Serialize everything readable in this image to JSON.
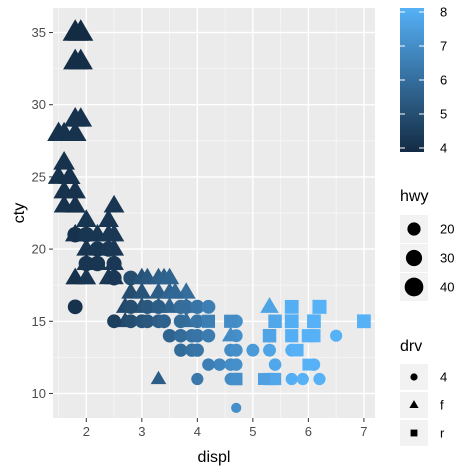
{
  "chart_data": {
    "type": "scatter",
    "title": "",
    "xlabel": "displ",
    "ylabel": "cty",
    "xlim": [
      1.4,
      7.2
    ],
    "ylim": [
      8.3,
      36.7
    ],
    "x_ticks": [
      2,
      3,
      4,
      5,
      6,
      7
    ],
    "y_ticks": [
      10,
      15,
      20,
      25,
      30,
      35
    ],
    "grid": true,
    "color_encoding": {
      "variable": "hwy",
      "legend_range": [
        4,
        8
      ],
      "ticks": [
        4,
        5,
        6,
        7,
        8
      ],
      "low_color": "#132B43",
      "high_color": "#56B1F7"
    },
    "size_encoding": {
      "variable": "hwy",
      "legend_title": "hwy",
      "legend_values": [
        20,
        30,
        40
      ]
    },
    "shape_encoding": {
      "variable": "drv",
      "legend_title": "drv",
      "levels": [
        {
          "label": "4",
          "shape": "circle"
        },
        {
          "label": "f",
          "shape": "triangle"
        },
        {
          "label": "r",
          "shape": "square"
        }
      ]
    },
    "legend_placement": "right",
    "points": [
      {
        "x": 1.8,
        "y": 35,
        "drv": "f",
        "hwy": 44,
        "c": 4.0
      },
      {
        "x": 1.9,
        "y": 35,
        "drv": "f",
        "hwy": 44,
        "c": 4.0
      },
      {
        "x": 1.8,
        "y": 33,
        "drv": "f",
        "hwy": 41,
        "c": 4.1
      },
      {
        "x": 1.9,
        "y": 33,
        "drv": "f",
        "hwy": 41,
        "c": 4.1
      },
      {
        "x": 1.8,
        "y": 29,
        "drv": "f",
        "hwy": 37,
        "c": 4.2
      },
      {
        "x": 1.9,
        "y": 29,
        "drv": "f",
        "hwy": 36,
        "c": 4.2
      },
      {
        "x": 1.5,
        "y": 28,
        "drv": "f",
        "hwy": 36,
        "c": 4.2
      },
      {
        "x": 1.6,
        "y": 28,
        "drv": "f",
        "hwy": 35,
        "c": 4.2
      },
      {
        "x": 1.8,
        "y": 28,
        "drv": "f",
        "hwy": 36,
        "c": 4.2
      },
      {
        "x": 1.6,
        "y": 26,
        "drv": "f",
        "hwy": 33,
        "c": 4.2
      },
      {
        "x": 1.5,
        "y": 25,
        "drv": "f",
        "hwy": 32,
        "c": 4.2
      },
      {
        "x": 1.7,
        "y": 25,
        "drv": "f",
        "hwy": 33,
        "c": 4.2
      },
      {
        "x": 1.6,
        "y": 24,
        "drv": "f",
        "hwy": 32,
        "c": 4.2
      },
      {
        "x": 1.8,
        "y": 24,
        "drv": "f",
        "hwy": 32,
        "c": 4.2
      },
      {
        "x": 1.8,
        "y": 23,
        "drv": "f",
        "hwy": 31,
        "c": 4.2
      },
      {
        "x": 1.6,
        "y": 23,
        "drv": "f",
        "hwy": 30,
        "c": 4.2
      },
      {
        "x": 2.0,
        "y": 22,
        "drv": "f",
        "hwy": 30,
        "c": 4.3
      },
      {
        "x": 2.4,
        "y": 22,
        "drv": "f",
        "hwy": 30,
        "c": 4.3
      },
      {
        "x": 2.5,
        "y": 23,
        "drv": "f",
        "hwy": 30,
        "c": 4.3
      },
      {
        "x": 1.8,
        "y": 21,
        "drv": "f",
        "hwy": 29,
        "c": 4.2
      },
      {
        "x": 2.0,
        "y": 21,
        "drv": "f",
        "hwy": 29,
        "c": 4.3
      },
      {
        "x": 2.2,
        "y": 21,
        "drv": "f",
        "hwy": 29,
        "c": 4.3
      },
      {
        "x": 2.4,
        "y": 21,
        "drv": "f",
        "hwy": 29,
        "c": 4.4
      },
      {
        "x": 2.5,
        "y": 21,
        "drv": "f",
        "hwy": 29,
        "c": 4.4
      },
      {
        "x": 2.0,
        "y": 20,
        "drv": "f",
        "hwy": 28,
        "c": 4.3
      },
      {
        "x": 2.4,
        "y": 20,
        "drv": "f",
        "hwy": 28,
        "c": 4.4
      },
      {
        "x": 2.5,
        "y": 20,
        "drv": "f",
        "hwy": 28,
        "c": 4.4
      },
      {
        "x": 2.2,
        "y": 19,
        "drv": "f",
        "hwy": 27,
        "c": 4.3
      },
      {
        "x": 2.5,
        "y": 19,
        "drv": "f",
        "hwy": 27,
        "c": 4.4
      },
      {
        "x": 2.0,
        "y": 19,
        "drv": "f",
        "hwy": 27,
        "c": 4.3
      },
      {
        "x": 1.8,
        "y": 18,
        "drv": "f",
        "hwy": 27,
        "c": 4.2
      },
      {
        "x": 2.0,
        "y": 18,
        "drv": "f",
        "hwy": 27,
        "c": 4.3
      },
      {
        "x": 2.5,
        "y": 18,
        "drv": "f",
        "hwy": 26,
        "c": 4.4
      },
      {
        "x": 2.4,
        "y": 18,
        "drv": "f",
        "hwy": 26,
        "c": 4.4
      },
      {
        "x": 1.8,
        "y": 21,
        "drv": "4",
        "hwy": 28,
        "c": 4.2
      },
      {
        "x": 2.0,
        "y": 21,
        "drv": "4",
        "hwy": 28,
        "c": 4.3
      },
      {
        "x": 2.2,
        "y": 20,
        "drv": "4",
        "hwy": 27,
        "c": 4.3
      },
      {
        "x": 2.4,
        "y": 20,
        "drv": "4",
        "hwy": 27,
        "c": 4.4
      },
      {
        "x": 2.0,
        "y": 19,
        "drv": "4",
        "hwy": 27,
        "c": 4.3
      },
      {
        "x": 2.2,
        "y": 19,
        "drv": "4",
        "hwy": 27,
        "c": 4.3
      },
      {
        "x": 2.5,
        "y": 19,
        "drv": "4",
        "hwy": 26,
        "c": 4.4
      },
      {
        "x": 1.8,
        "y": 16,
        "drv": "4",
        "hwy": 25,
        "c": 4.2
      },
      {
        "x": 2.5,
        "y": 18,
        "drv": "4",
        "hwy": 26,
        "c": 4.4
      },
      {
        "x": 2.8,
        "y": 18,
        "drv": "4",
        "hwy": 25,
        "c": 5.0
      },
      {
        "x": 3.0,
        "y": 18,
        "drv": "f",
        "hwy": 26,
        "c": 5.2
      },
      {
        "x": 3.1,
        "y": 18,
        "drv": "f",
        "hwy": 26,
        "c": 5.3
      },
      {
        "x": 3.3,
        "y": 18,
        "drv": "f",
        "hwy": 26,
        "c": 5.5
      },
      {
        "x": 3.4,
        "y": 18,
        "drv": "f",
        "hwy": 26,
        "c": 5.6
      },
      {
        "x": 3.5,
        "y": 18,
        "drv": "f",
        "hwy": 26,
        "c": 5.7
      },
      {
        "x": 2.8,
        "y": 17,
        "drv": "f",
        "hwy": 25,
        "c": 5.0
      },
      {
        "x": 3.0,
        "y": 17,
        "drv": "f",
        "hwy": 25,
        "c": 5.2
      },
      {
        "x": 3.3,
        "y": 17,
        "drv": "f",
        "hwy": 25,
        "c": 5.5
      },
      {
        "x": 3.5,
        "y": 17,
        "drv": "f",
        "hwy": 25,
        "c": 5.7
      },
      {
        "x": 3.8,
        "y": 17,
        "drv": "f",
        "hwy": 25,
        "c": 6.0
      },
      {
        "x": 3.6,
        "y": 17,
        "drv": "f",
        "hwy": 25,
        "c": 5.8
      },
      {
        "x": 2.7,
        "y": 16,
        "drv": "f",
        "hwy": 24,
        "c": 4.9
      },
      {
        "x": 3.3,
        "y": 16,
        "drv": "f",
        "hwy": 24,
        "c": 5.5
      },
      {
        "x": 3.8,
        "y": 16,
        "drv": "f",
        "hwy": 24,
        "c": 6.0
      },
      {
        "x": 3.5,
        "y": 16,
        "drv": "f",
        "hwy": 24,
        "c": 5.7
      },
      {
        "x": 3.0,
        "y": 16,
        "drv": "f",
        "hwy": 24,
        "c": 5.2
      },
      {
        "x": 2.8,
        "y": 16,
        "drv": "4",
        "hwy": 23,
        "c": 5.0
      },
      {
        "x": 3.1,
        "y": 16,
        "drv": "4",
        "hwy": 23,
        "c": 5.3
      },
      {
        "x": 3.3,
        "y": 16,
        "drv": "4",
        "hwy": 23,
        "c": 5.5
      },
      {
        "x": 3.7,
        "y": 16,
        "drv": "4",
        "hwy": 23,
        "c": 5.9
      },
      {
        "x": 3.8,
        "y": 16,
        "drv": "4",
        "hwy": 23,
        "c": 6.0
      },
      {
        "x": 4.0,
        "y": 16,
        "drv": "4",
        "hwy": 23,
        "c": 6.2
      },
      {
        "x": 2.7,
        "y": 15,
        "drv": "f",
        "hwy": 22,
        "c": 4.9
      },
      {
        "x": 3.8,
        "y": 15,
        "drv": "f",
        "hwy": 22,
        "c": 6.0
      },
      {
        "x": 2.8,
        "y": 15,
        "drv": "4",
        "hwy": 22,
        "c": 5.0
      },
      {
        "x": 3.0,
        "y": 15,
        "drv": "4",
        "hwy": 22,
        "c": 5.2
      },
      {
        "x": 3.1,
        "y": 15,
        "drv": "4",
        "hwy": 22,
        "c": 5.3
      },
      {
        "x": 3.3,
        "y": 15,
        "drv": "4",
        "hwy": 22,
        "c": 5.5
      },
      {
        "x": 3.4,
        "y": 15,
        "drv": "4",
        "hwy": 22,
        "c": 5.6
      },
      {
        "x": 3.7,
        "y": 15,
        "drv": "4",
        "hwy": 22,
        "c": 5.9
      },
      {
        "x": 4.0,
        "y": 15,
        "drv": "4",
        "hwy": 22,
        "c": 6.2
      },
      {
        "x": 2.5,
        "y": 15,
        "drv": "4",
        "hwy": 22,
        "c": 4.6
      },
      {
        "x": 3.5,
        "y": 14,
        "drv": "4",
        "hwy": 21,
        "c": 5.7
      },
      {
        "x": 3.7,
        "y": 14,
        "drv": "4",
        "hwy": 21,
        "c": 5.9
      },
      {
        "x": 3.9,
        "y": 14,
        "drv": "4",
        "hwy": 21,
        "c": 6.1
      },
      {
        "x": 4.0,
        "y": 14,
        "drv": "4",
        "hwy": 21,
        "c": 6.2
      },
      {
        "x": 4.2,
        "y": 14,
        "drv": "4",
        "hwy": 21,
        "c": 6.4
      },
      {
        "x": 3.7,
        "y": 13,
        "drv": "4",
        "hwy": 20,
        "c": 5.9
      },
      {
        "x": 3.9,
        "y": 13,
        "drv": "4",
        "hwy": 20,
        "c": 6.1
      },
      {
        "x": 4.0,
        "y": 13,
        "drv": "4",
        "hwy": 20,
        "c": 6.2
      },
      {
        "x": 4.7,
        "y": 15,
        "drv": "4",
        "hwy": 20,
        "c": 7.0
      },
      {
        "x": 4.7,
        "y": 14,
        "drv": "4",
        "hwy": 19,
        "c": 7.0
      },
      {
        "x": 4.6,
        "y": 13,
        "drv": "4",
        "hwy": 19,
        "c": 6.9
      },
      {
        "x": 4.7,
        "y": 13,
        "drv": "4",
        "hwy": 19,
        "c": 7.0
      },
      {
        "x": 4.6,
        "y": 14,
        "drv": "f",
        "hwy": 21,
        "c": 6.9
      },
      {
        "x": 5.3,
        "y": 16,
        "drv": "f",
        "hwy": 24,
        "c": 7.6
      },
      {
        "x": 4.2,
        "y": 16,
        "drv": "4",
        "hwy": 22,
        "c": 6.5
      },
      {
        "x": 4.4,
        "y": 12,
        "drv": "4",
        "hwy": 18,
        "c": 6.7
      },
      {
        "x": 4.6,
        "y": 12,
        "drv": "4",
        "hwy": 18,
        "c": 6.9
      },
      {
        "x": 4.7,
        "y": 12,
        "drv": "4",
        "hwy": 18,
        "c": 7.0
      },
      {
        "x": 4.2,
        "y": 12,
        "drv": "4",
        "hwy": 18,
        "c": 6.5
      },
      {
        "x": 4.0,
        "y": 11,
        "drv": "4",
        "hwy": 17,
        "c": 6.3
      },
      {
        "x": 4.7,
        "y": 11,
        "drv": "4",
        "hwy": 17,
        "c": 7.0
      },
      {
        "x": 4.6,
        "y": 11,
        "drv": "4",
        "hwy": 17,
        "c": 6.9
      },
      {
        "x": 5.0,
        "y": 13,
        "drv": "4",
        "hwy": 19,
        "c": 7.3
      },
      {
        "x": 5.3,
        "y": 13,
        "drv": "4",
        "hwy": 19,
        "c": 7.6
      },
      {
        "x": 5.4,
        "y": 12,
        "drv": "4",
        "hwy": 18,
        "c": 7.7
      },
      {
        "x": 5.7,
        "y": 13,
        "drv": "4",
        "hwy": 19,
        "c": 7.9
      },
      {
        "x": 6.1,
        "y": 12,
        "drv": "4",
        "hwy": 18,
        "c": 8.0
      },
      {
        "x": 5.9,
        "y": 11,
        "drv": "4",
        "hwy": 17,
        "c": 8.0
      },
      {
        "x": 6.5,
        "y": 14,
        "drv": "4",
        "hwy": 17,
        "c": 8.0
      },
      {
        "x": 5.3,
        "y": 11,
        "drv": "4",
        "hwy": 17,
        "c": 7.6
      },
      {
        "x": 5.7,
        "y": 11,
        "drv": "4",
        "hwy": 17,
        "c": 7.9
      },
      {
        "x": 6.2,
        "y": 11,
        "drv": "4",
        "hwy": 17,
        "c": 8.0
      },
      {
        "x": 4.7,
        "y": 9,
        "drv": "4",
        "hwy": 12,
        "c": 7.0
      },
      {
        "x": 4.2,
        "y": 15,
        "drv": "r",
        "hwy": 22,
        "c": 6.5
      },
      {
        "x": 4.6,
        "y": 15,
        "drv": "r",
        "hwy": 22,
        "c": 6.9
      },
      {
        "x": 5.7,
        "y": 16,
        "drv": "r",
        "hwy": 24,
        "c": 7.9
      },
      {
        "x": 5.7,
        "y": 15,
        "drv": "r",
        "hwy": 24,
        "c": 7.9
      },
      {
        "x": 6.1,
        "y": 15,
        "drv": "r",
        "hwy": 24,
        "c": 8.0
      },
      {
        "x": 6.2,
        "y": 16,
        "drv": "r",
        "hwy": 25,
        "c": 8.0
      },
      {
        "x": 7.0,
        "y": 15,
        "drv": "r",
        "hwy": 24,
        "c": 8.0
      },
      {
        "x": 5.4,
        "y": 15,
        "drv": "r",
        "hwy": 23,
        "c": 7.7
      },
      {
        "x": 5.3,
        "y": 14,
        "drv": "r",
        "hwy": 23,
        "c": 7.6
      },
      {
        "x": 5.7,
        "y": 14,
        "drv": "r",
        "hwy": 22,
        "c": 7.9
      },
      {
        "x": 6.0,
        "y": 14,
        "drv": "r",
        "hwy": 22,
        "c": 8.0
      },
      {
        "x": 6.1,
        "y": 14,
        "drv": "r",
        "hwy": 22,
        "c": 8.0
      },
      {
        "x": 5.8,
        "y": 13,
        "drv": "r",
        "hwy": 20,
        "c": 8.0
      },
      {
        "x": 4.7,
        "y": 11,
        "drv": "r",
        "hwy": 20,
        "c": 7.0
      },
      {
        "x": 5.3,
        "y": 11,
        "drv": "r",
        "hwy": 19,
        "c": 7.6
      },
      {
        "x": 5.4,
        "y": 11,
        "drv": "r",
        "hwy": 19,
        "c": 7.7
      },
      {
        "x": 5.2,
        "y": 11,
        "drv": "r",
        "hwy": 18,
        "c": 7.5
      },
      {
        "x": 6.0,
        "y": 12,
        "drv": "r",
        "hwy": 18,
        "c": 8.0
      },
      {
        "x": 3.3,
        "y": 11,
        "drv": "f",
        "hwy": 17,
        "c": 5.5
      }
    ]
  }
}
